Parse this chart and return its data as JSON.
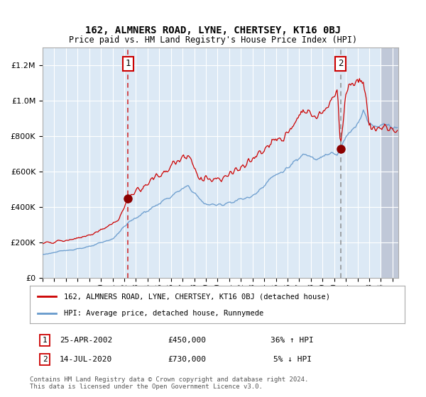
{
  "title": "162, ALMNERS ROAD, LYNE, CHERTSEY, KT16 0BJ",
  "subtitle": "Price paid vs. HM Land Registry's House Price Index (HPI)",
  "red_label": "162, ALMNERS ROAD, LYNE, CHERTSEY, KT16 0BJ (detached house)",
  "blue_label": "HPI: Average price, detached house, Runnymede",
  "transaction1_date": "25-APR-2002",
  "transaction1_price": 450000,
  "transaction1_hpi": "36% ↑ HPI",
  "transaction2_date": "14-JUL-2020",
  "transaction2_price": 730000,
  "transaction2_hpi": "5% ↓ HPI",
  "footer": "Contains HM Land Registry data © Crown copyright and database right 2024.\nThis data is licensed under the Open Government Licence v3.0.",
  "bg_color": "#dce9f5",
  "hatch_color": "#c0c8d8",
  "grid_color": "#ffffff",
  "red_color": "#cc0000",
  "blue_color": "#6699cc",
  "ylim": [
    0,
    1300000
  ],
  "yticks": [
    0,
    200000,
    400000,
    600000,
    800000,
    1000000,
    1200000
  ],
  "start_year": 1995,
  "end_year": 2025,
  "transaction1_x": 2002.32,
  "transaction2_x": 2020.54
}
